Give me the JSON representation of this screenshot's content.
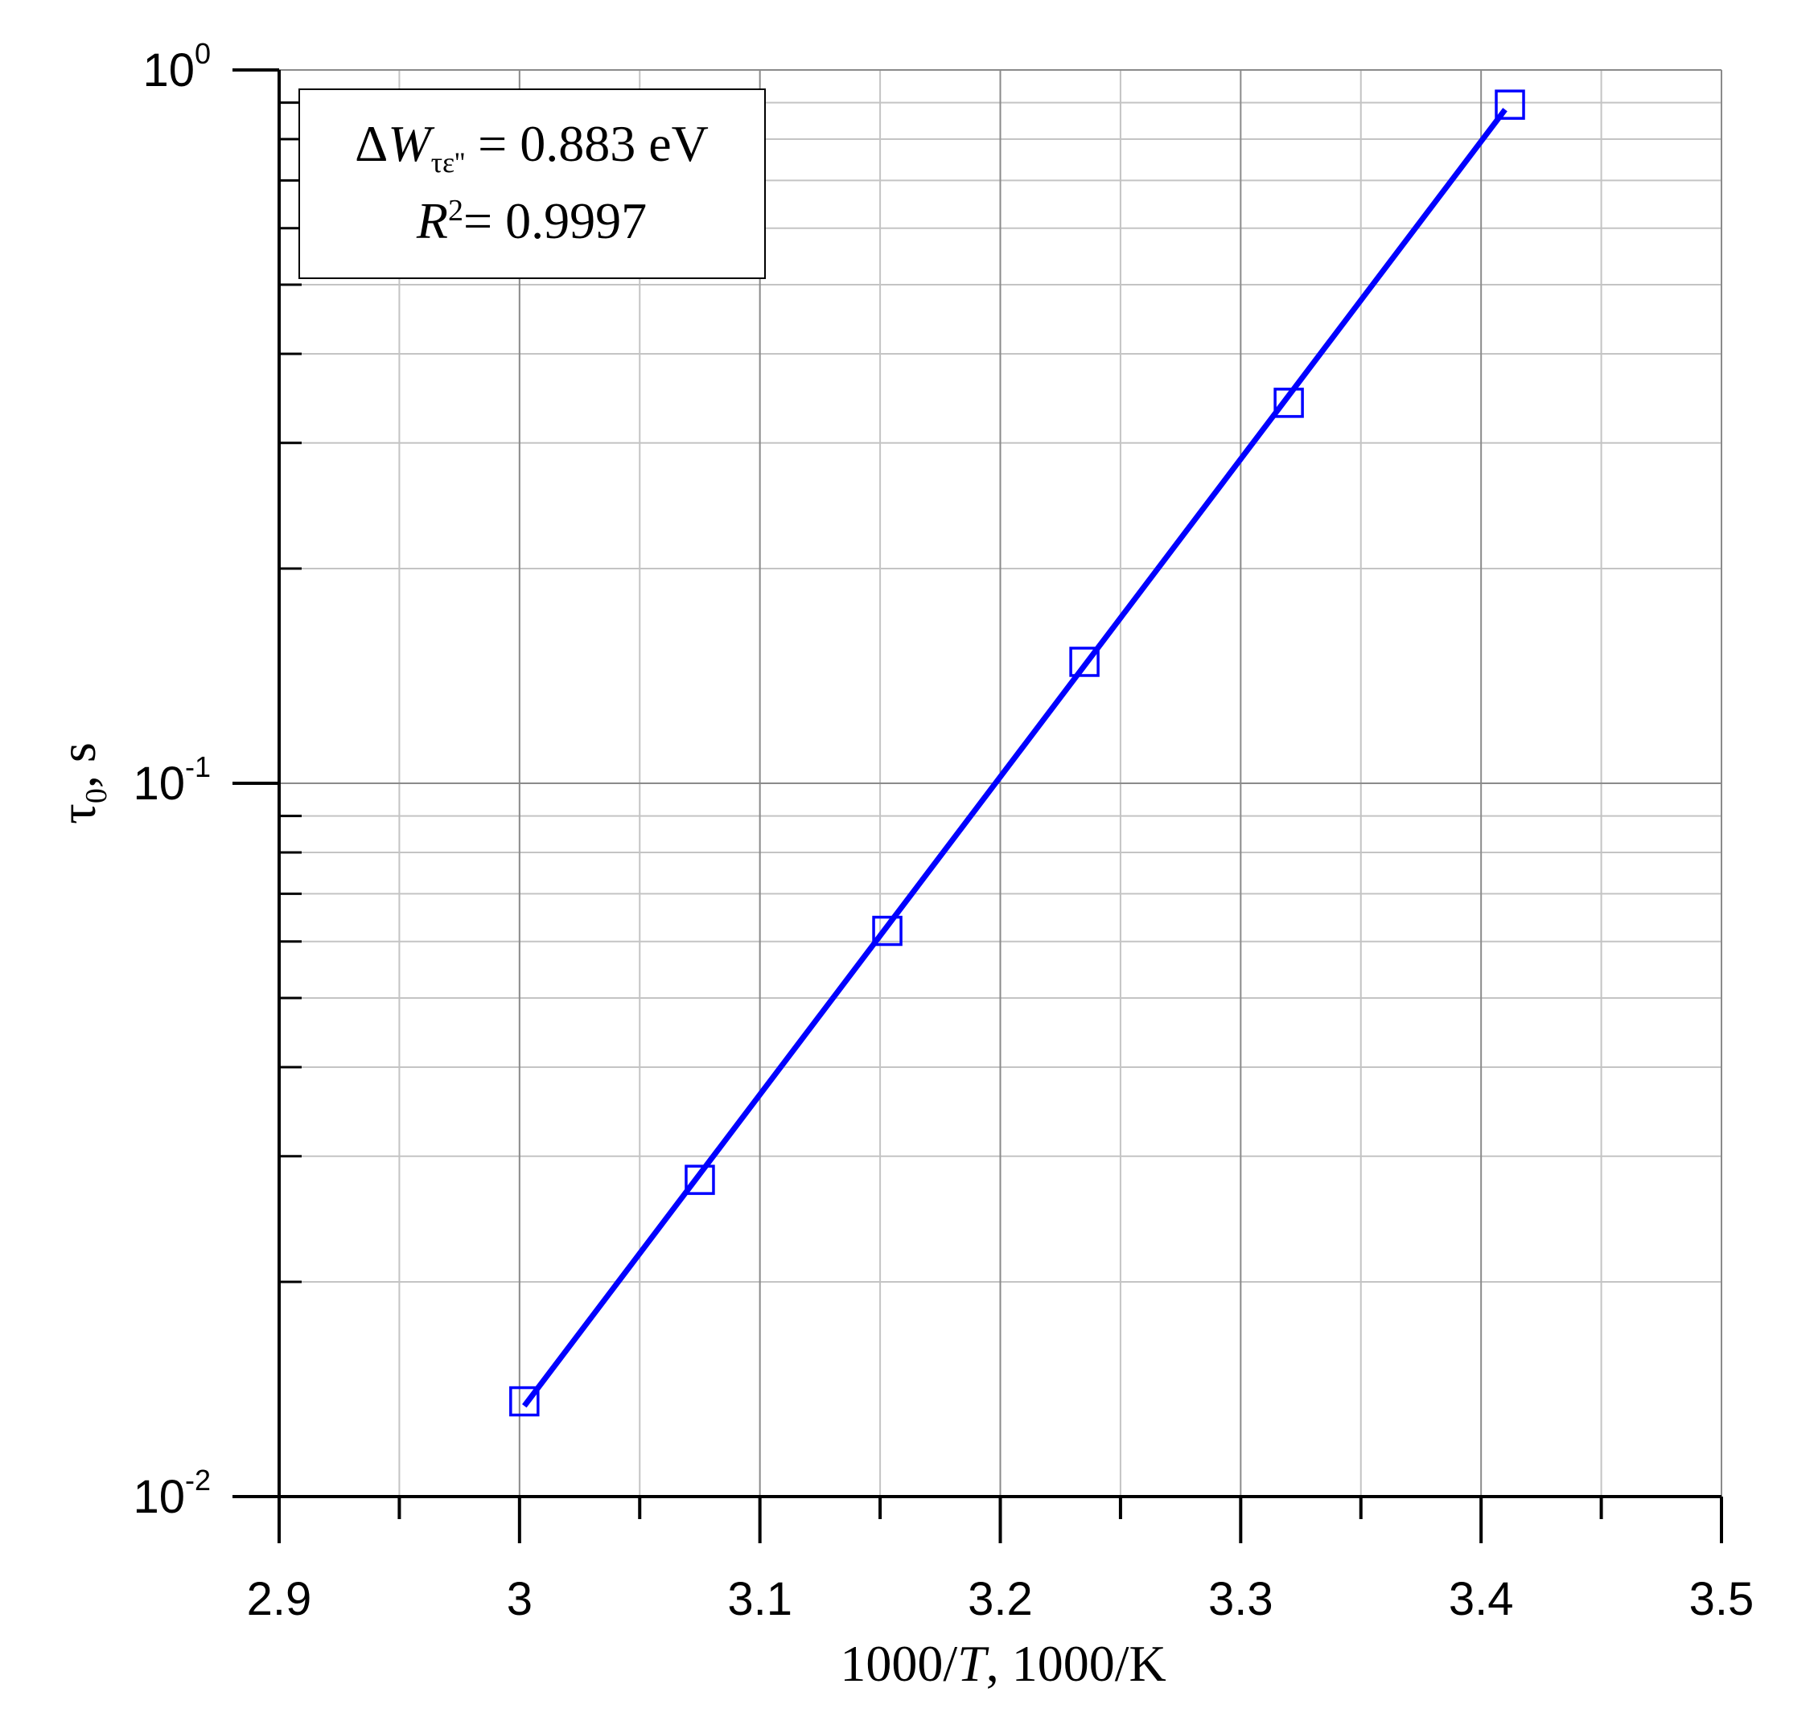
{
  "chart_data": {
    "type": "scatter",
    "x_label": {
      "pre": "1000/",
      "italic": "T",
      "post": ", 1000/K"
    },
    "y_label": {
      "symbol": "τ",
      "sub": "0",
      "post": ", s"
    },
    "annotation": {
      "line1": {
        "symbol": "Δ",
        "italic": "W",
        "sub": "τε''",
        "post": " = 0.883 eV"
      },
      "line2": {
        "italic": "R",
        "sup": "2",
        "post": "= 0.9997"
      }
    },
    "series": [
      {
        "color": "#0000ff",
        "marker": "square",
        "x": [
          3.002,
          3.075,
          3.153,
          3.235,
          3.32,
          3.412
        ],
        "values": [
          0.0136,
          0.0278,
          0.0621,
          0.148,
          0.3415,
          0.894
        ]
      },
      {
        "color": "#0000ff",
        "marker": "line",
        "x": [
          3.002,
          3.41
        ],
        "values": [
          0.0134,
          0.88
        ]
      }
    ],
    "xlim": [
      2.9,
      3.5
    ],
    "xticks": [
      2.9,
      3,
      3.1,
      3.2,
      3.3,
      3.4,
      3.5
    ],
    "xminor": [
      2.95,
      3.05,
      3.15,
      3.25,
      3.35,
      3.45
    ],
    "ylim": [
      0.01,
      1
    ],
    "log_y": true,
    "yticks": [
      {
        "value": 0.01,
        "label": "10",
        "exponent": "-2"
      },
      {
        "value": 0.1,
        "label": "10",
        "exponent": "-1"
      },
      {
        "value": 1,
        "label": "10",
        "exponent": "0"
      }
    ],
    "yminor": [
      0.02,
      0.03,
      0.04,
      0.05,
      0.06,
      0.07,
      0.08,
      0.09,
      0.2,
      0.3,
      0.4,
      0.5,
      0.6,
      0.7,
      0.8,
      0.9
    ],
    "grid": true
  }
}
